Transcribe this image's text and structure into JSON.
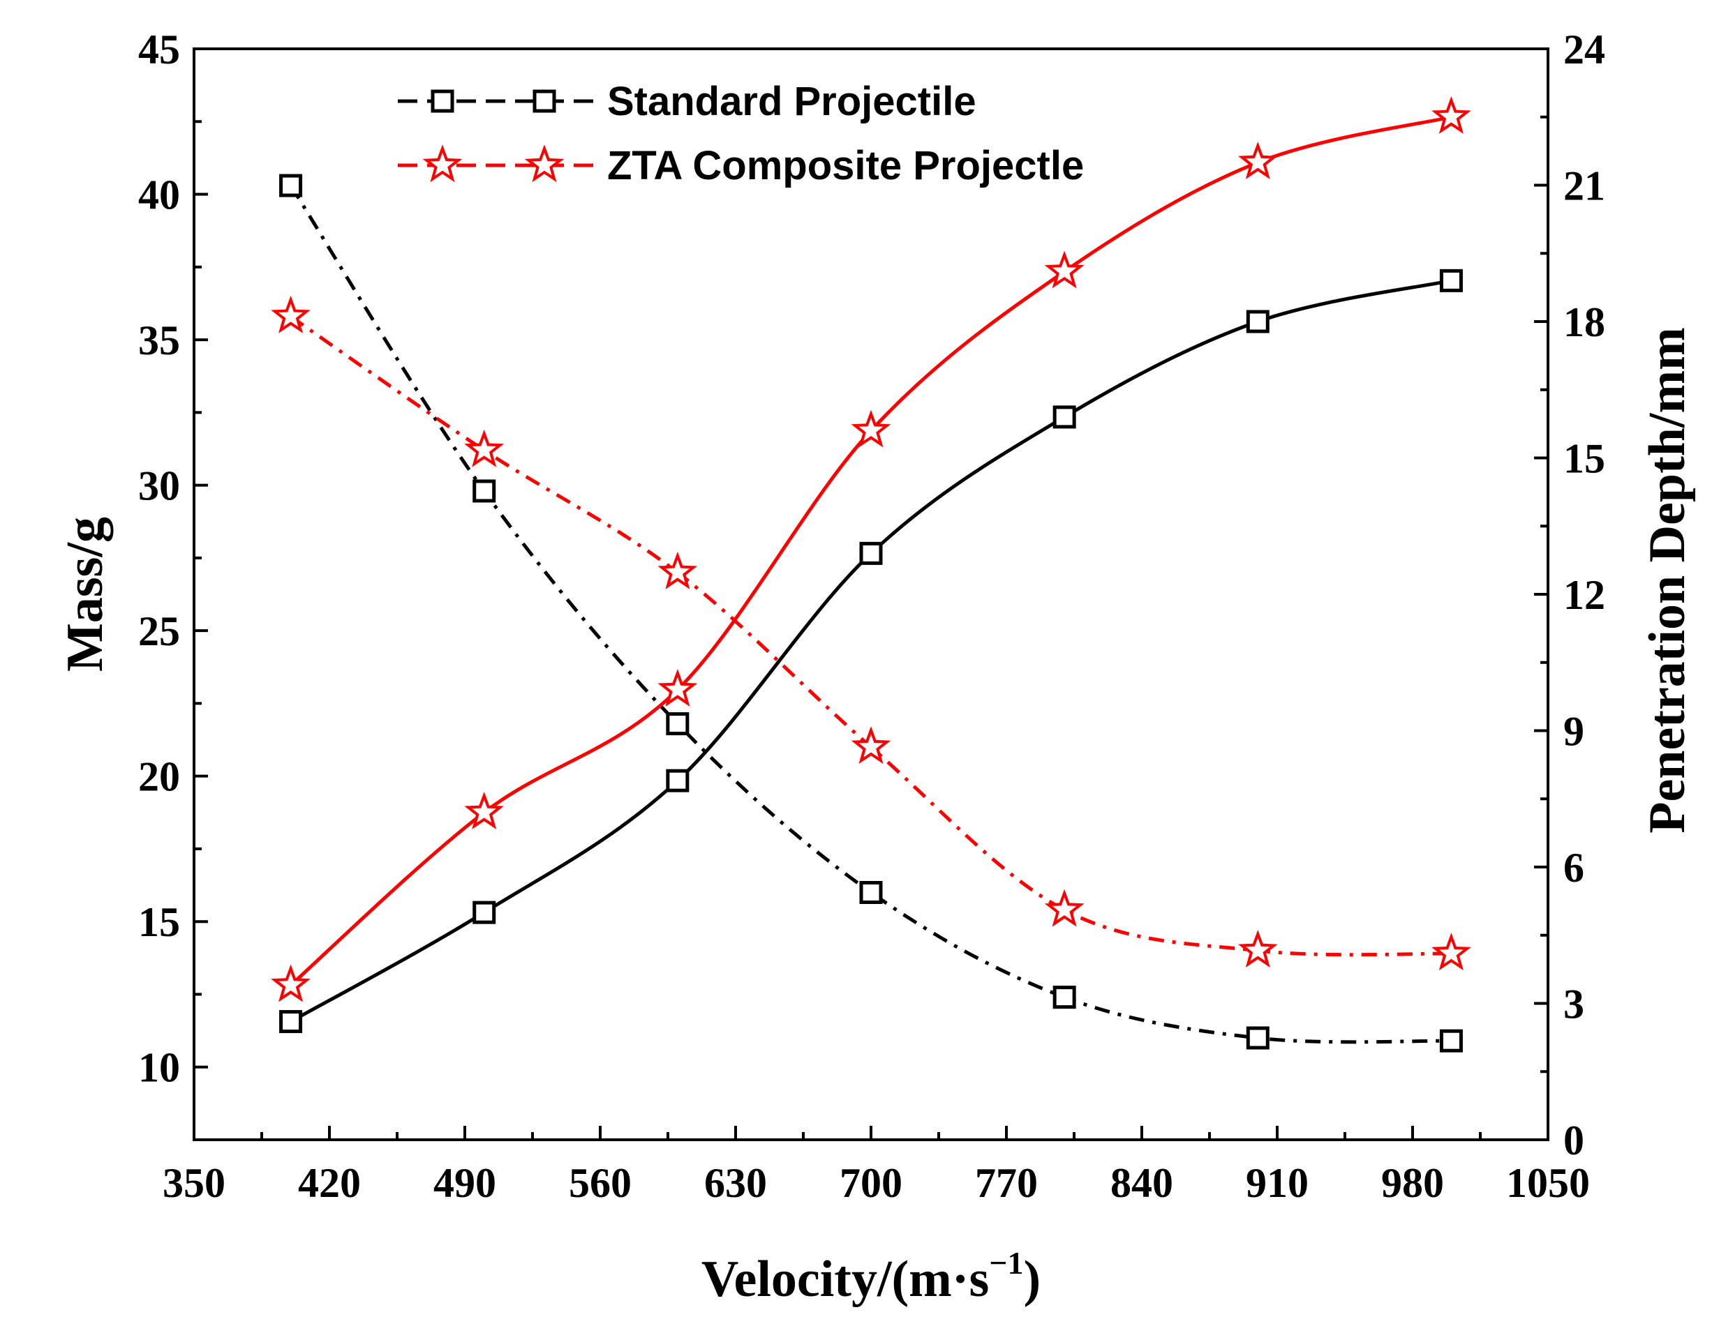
{
  "chart_data": {
    "type": "line",
    "x": [
      400,
      500,
      600,
      700,
      800,
      900,
      1000
    ],
    "xlim": [
      350,
      1050
    ],
    "xticks": [
      "350",
      "420",
      "490",
      "560",
      "630",
      "700",
      "770",
      "840",
      "910",
      "980",
      "1050"
    ],
    "xtick_values": [
      350,
      420,
      490,
      560,
      630,
      700,
      770,
      840,
      910,
      980,
      1050
    ],
    "xlabel": "Velocity/(m·s",
    "xlabel_sup": "−1",
    "xlabel_close": ")",
    "y_left": {
      "label": "Mass/g",
      "lim": [
        7.5,
        45
      ],
      "ticks": [
        "10",
        "15",
        "20",
        "25",
        "30",
        "35",
        "40",
        "45"
      ],
      "tick_values": [
        10,
        15,
        20,
        25,
        30,
        35,
        40,
        45
      ]
    },
    "y_right": {
      "label": "Penetration Depth/mm",
      "lim": [
        0,
        24
      ],
      "ticks": [
        "0",
        "3",
        "6",
        "9",
        "12",
        "15",
        "18",
        "21",
        "24"
      ],
      "tick_values": [
        0,
        3,
        6,
        9,
        12,
        15,
        18,
        21,
        24
      ]
    },
    "legend": [
      {
        "label": "Standard Projectile",
        "color": "#000000",
        "marker": "square"
      },
      {
        "label": "ZTA Composite Projectle",
        "color": "#ff0000",
        "marker": "star"
      }
    ],
    "legend_position": "top-left",
    "grid": false,
    "series": [
      {
        "legend_index": 0,
        "axis": "left",
        "quantity": "mass",
        "style": "dashdot",
        "marker": "square",
        "color": "#000000",
        "values": [
          40.3,
          29.8,
          21.8,
          16.0,
          12.4,
          11.0,
          10.9
        ]
      },
      {
        "legend_index": 1,
        "axis": "left",
        "quantity": "mass",
        "style": "dashdot",
        "marker": "star",
        "color": "#ff0000",
        "values": [
          35.8,
          31.2,
          27.0,
          21.0,
          15.4,
          14.0,
          13.9
        ]
      },
      {
        "legend_index": 0,
        "axis": "right",
        "quantity": "penetration depth",
        "style": "solid",
        "marker": "square",
        "color": "#000000",
        "values": [
          2.6,
          5.0,
          7.9,
          12.9,
          15.9,
          18.0,
          18.9
        ]
      },
      {
        "legend_index": 1,
        "axis": "right",
        "quantity": "penetration depth",
        "style": "solid",
        "marker": "star",
        "color": "#ff0000",
        "values": [
          3.4,
          7.2,
          9.9,
          15.6,
          19.1,
          21.5,
          22.5
        ]
      }
    ]
  }
}
